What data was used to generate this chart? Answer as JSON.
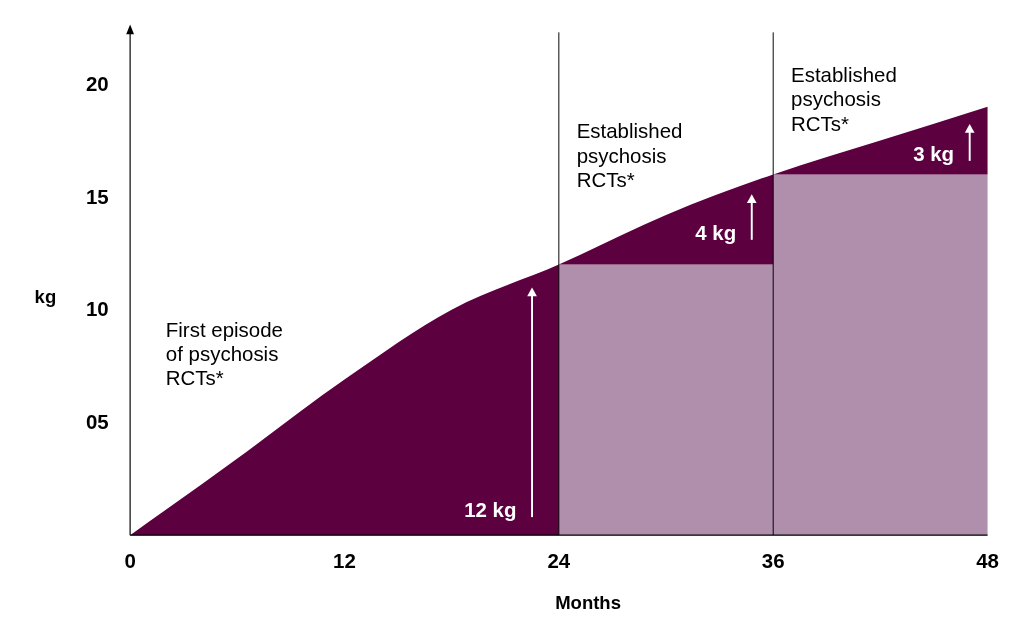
{
  "chart_data": {
    "type": "area",
    "xlabel": "Months",
    "ylabel": "kg",
    "xlim": [
      0,
      48
    ],
    "xticks": [
      0,
      12,
      24,
      36,
      48
    ],
    "ylim": [
      0,
      22.3
    ],
    "yticks": [
      {
        "value": 5,
        "label": "05"
      },
      10,
      15,
      20
    ],
    "grid": false,
    "series": [
      {
        "color": "#5c0040",
        "x": [
          0,
          6,
          12,
          18,
          24,
          30,
          36,
          42,
          48
        ],
        "values": [
          0,
          3.4,
          6.9,
          10,
          12,
          14.2,
          16,
          17.5,
          19
        ]
      },
      {
        "color": "#b08fad",
        "x": [
          24,
          36,
          36,
          48
        ],
        "values": [
          12,
          12,
          16,
          16
        ]
      }
    ],
    "ref_lines": [
      {
        "axis": "x",
        "value": 24,
        "color": "#000000"
      },
      {
        "axis": "x",
        "value": 36,
        "color": "#000000"
      }
    ],
    "annotations": [
      "First episode\nof psychosis\nRCTs*",
      "Established\npsychosis\nRCTs*",
      "Established\npsychosis\nRCTs*",
      "12 kg",
      "4 kg",
      "3 kg"
    ]
  }
}
